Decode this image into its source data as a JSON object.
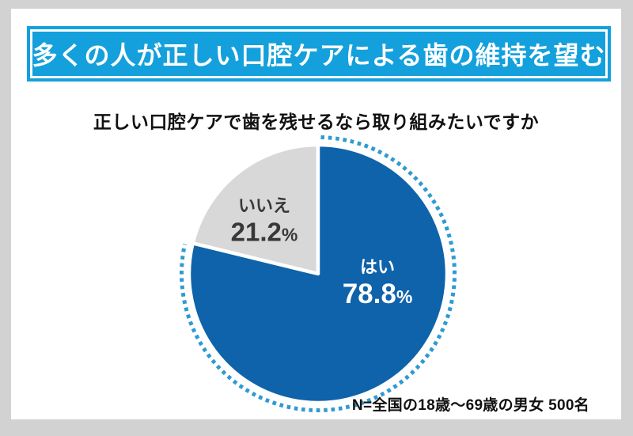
{
  "page": {
    "bg_color": "#d2d2d2",
    "card_color": "#ffffff"
  },
  "header": {
    "title": "多くの人が正しい口腔ケアによる歯の維持を望む",
    "bg_color": "#14a0dc",
    "text_color": "#ffffff",
    "inner_border_color": "#ffffff"
  },
  "question": "正しい口腔ケアで歯を残せるなら取り組みたいですか",
  "footnote": "N=全国の18歳〜69歳の男女 500名",
  "chart_data": {
    "type": "pie",
    "title": "正しい口腔ケアで歯を残せるなら取り組みたいですか",
    "categories": [
      "はい",
      "いいえ"
    ],
    "values": [
      78.8,
      21.2
    ],
    "unit": "%",
    "start_angle_deg": 0,
    "direction": "clockwise",
    "legend": "none",
    "slice_border_color": "#ffffff",
    "highlight_dot_color": "#2f9ad2",
    "highlighted_slice": "はい",
    "note": "N=全国の18歳〜69歳の男女 500名",
    "slices": [
      {
        "label": "はい",
        "value": 78.8,
        "value_text": "78.8",
        "percent_sign": "%",
        "color": "#0e63aa",
        "text_color": "#ffffff"
      },
      {
        "label": "いいえ",
        "value": 21.2,
        "value_text": "21.2",
        "percent_sign": "%",
        "color": "#d8d8d8",
        "text_color": "#383838"
      }
    ]
  }
}
